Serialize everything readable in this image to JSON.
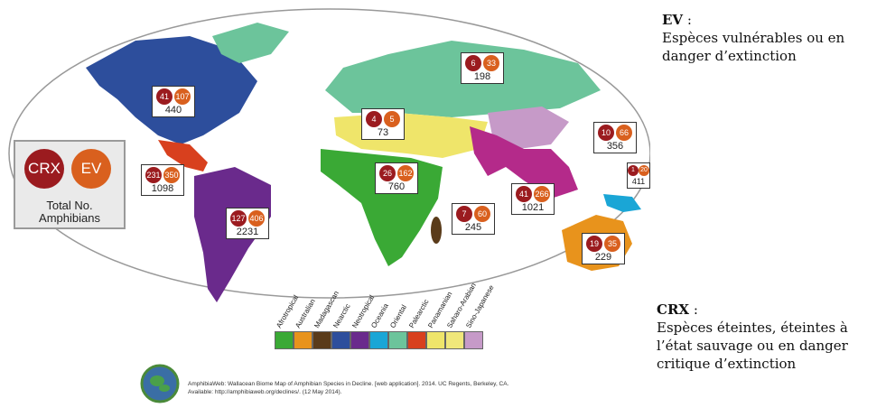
{
  "ev_heading": "EV",
  "ev_colon": " :",
  "ev_lines": [
    "Espèces vulnérables ou en",
    "danger d’extinction"
  ],
  "crx_heading": "CRX",
  "crx_colon": " :",
  "crx_lines": [
    "Espèces éteintes, éteintes à",
    "l’état sauvage ou en danger",
    "critique d’extinction"
  ],
  "legend": {
    "crx": "CRX",
    "ev": "EV",
    "total_line1": "Total No.",
    "total_line2": "Amphibians"
  },
  "regions": [
    {
      "crx": "41",
      "ev": "107",
      "total": "440"
    },
    {
      "crx": "231",
      "ev": "350",
      "total": "1098"
    },
    {
      "crx": "127",
      "ev": "406",
      "total": "2231"
    },
    {
      "crx": "6",
      "ev": "33",
      "total": "198"
    },
    {
      "crx": "4",
      "ev": "5",
      "total": "73"
    },
    {
      "crx": "26",
      "ev": "162",
      "total": "760"
    },
    {
      "crx": "7",
      "ev": "60",
      "total": "245"
    },
    {
      "crx": "41",
      "ev": "266",
      "total": "1021"
    },
    {
      "crx": "10",
      "ev": "66",
      "total": "356"
    },
    {
      "crx": "1",
      "ev": "20",
      "total": "411"
    },
    {
      "crx": "19",
      "ev": "35",
      "total": "229"
    }
  ],
  "realms": [
    {
      "name": "Afrotropical",
      "color": "#3aa935"
    },
    {
      "name": "Australian",
      "color": "#e8931c"
    },
    {
      "name": "Madagascan",
      "color": "#5a3b1a"
    },
    {
      "name": "Nearctic",
      "color": "#2d4e9c"
    },
    {
      "name": "Neotropical",
      "color": "#6a2a8c"
    },
    {
      "name": "Oceania",
      "color": "#1aa6d6"
    },
    {
      "name": "Oriental",
      "color": "#6cc49b"
    },
    {
      "name": "Palearctic",
      "color": "#d8401e"
    },
    {
      "name": "Panamanian",
      "color": "#efe56a"
    },
    {
      "name": "Saharo-Arabian",
      "color": "#f0e77a"
    },
    {
      "name": "Sino-Japanese",
      "color": "#c69ac8"
    }
  ],
  "citation": [
    "AmphibiaWeb: Wallacean Biome Map of Amphibian Species in Decline. [web application]. 2014. UC Regents, Berkeley, CA.",
    "Available: http://amphibiaweb.org/declines/. (12 May 2014)."
  ]
}
